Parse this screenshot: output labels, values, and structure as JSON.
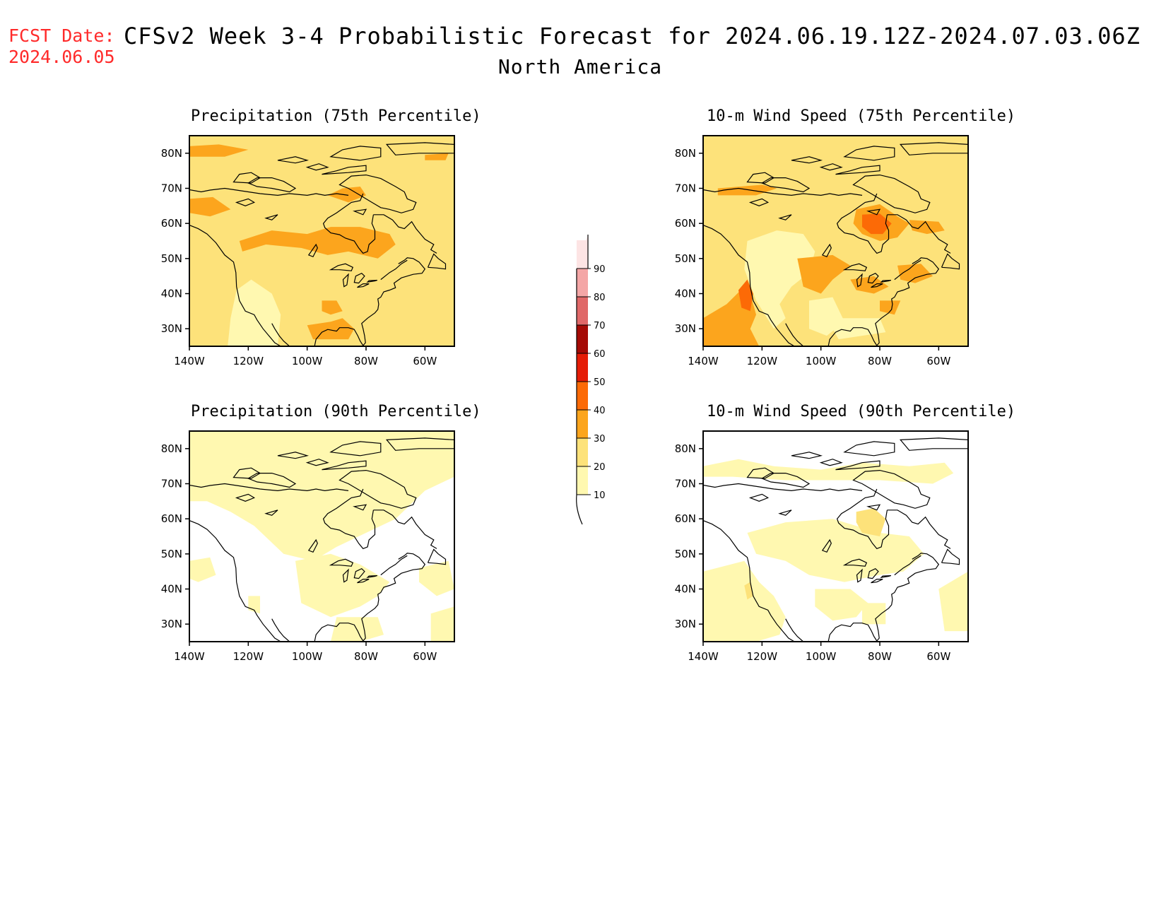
{
  "header": {
    "fcst_label": "FCST Date:",
    "fcst_date": "2024.06.05",
    "title": "CFSv2 Week 3-4 Probabilistic Forecast for 2024.06.19.12Z-2024.07.03.06Z",
    "region": "North America"
  },
  "panels": [
    {
      "id": "precip75",
      "title": "Precipitation (75th Percentile)"
    },
    {
      "id": "wind75",
      "title": "10-m Wind Speed (75th Percentile)"
    },
    {
      "id": "precip90",
      "title": "Precipitation (90th Percentile)"
    },
    {
      "id": "wind90",
      "title": "10-m Wind Speed (90th Percentile)"
    }
  ],
  "axes": {
    "lon_ticks": [
      "140W",
      "120W",
      "100W",
      "80W",
      "60W"
    ],
    "lat_ticks": [
      "80N",
      "70N",
      "60N",
      "50N",
      "40N",
      "30N"
    ],
    "lon_values": [
      -140,
      -120,
      -100,
      -80,
      -60
    ],
    "lat_values": [
      80,
      70,
      60,
      50,
      40,
      30
    ],
    "lon_range": [
      -140,
      -50
    ],
    "lat_range": [
      25,
      85
    ]
  },
  "colorbar": {
    "levels": [
      "10",
      "20",
      "30",
      "40",
      "50",
      "60",
      "70",
      "80",
      "90"
    ],
    "colors": [
      "#fff8b0",
      "#fde27a",
      "#fca51d",
      "#fc6a06",
      "#e51c06",
      "#a50a05",
      "#e06868",
      "#f4a6a6",
      "#fde4e4"
    ]
  },
  "fill_colors": {
    "white": "#ffffff",
    "c10": "#fff8b0",
    "c20": "#fde27a",
    "c30": "#fca51d",
    "c40": "#fc6a06",
    "c50": "#e51c06"
  }
}
